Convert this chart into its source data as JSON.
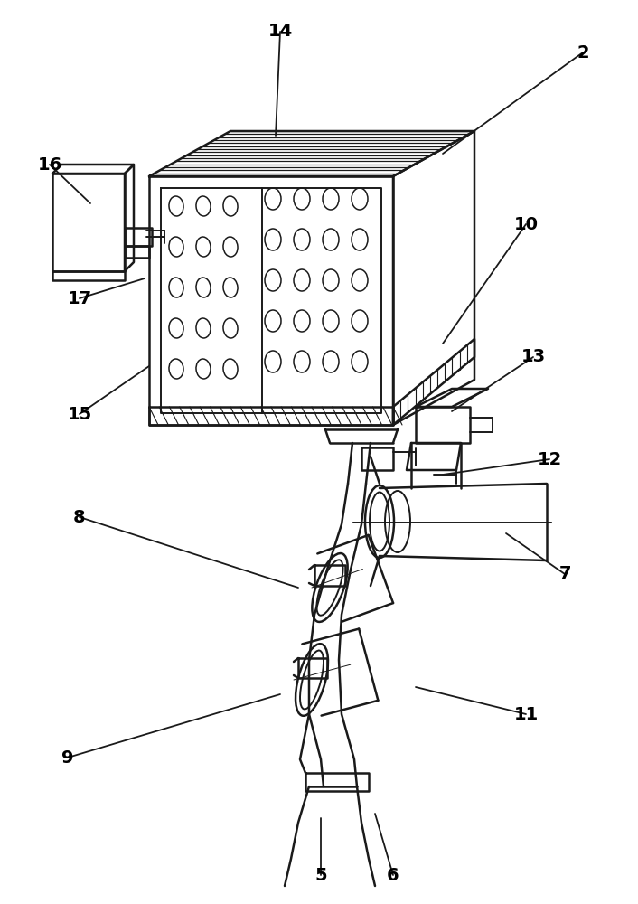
{
  "background_color": "#ffffff",
  "line_color": "#1a1a1a",
  "label_color": "#000000",
  "figsize": [
    7.06,
    10.0
  ],
  "dpi": 100,
  "label_data": [
    [
      "2",
      645,
      58,
      490,
      170
    ],
    [
      "5",
      355,
      968,
      355,
      905
    ],
    [
      "6",
      435,
      968,
      415,
      900
    ],
    [
      "7",
      625,
      635,
      560,
      590
    ],
    [
      "8",
      88,
      572,
      330,
      650
    ],
    [
      "9",
      75,
      838,
      310,
      768
    ],
    [
      "10",
      582,
      248,
      490,
      380
    ],
    [
      "11",
      582,
      790,
      460,
      760
    ],
    [
      "12",
      608,
      508,
      490,
      525
    ],
    [
      "13",
      590,
      395,
      500,
      455
    ],
    [
      "14",
      310,
      35,
      305,
      150
    ],
    [
      "15",
      88,
      458,
      165,
      405
    ],
    [
      "16",
      55,
      182,
      100,
      225
    ],
    [
      "17",
      88,
      330,
      160,
      308
    ]
  ]
}
